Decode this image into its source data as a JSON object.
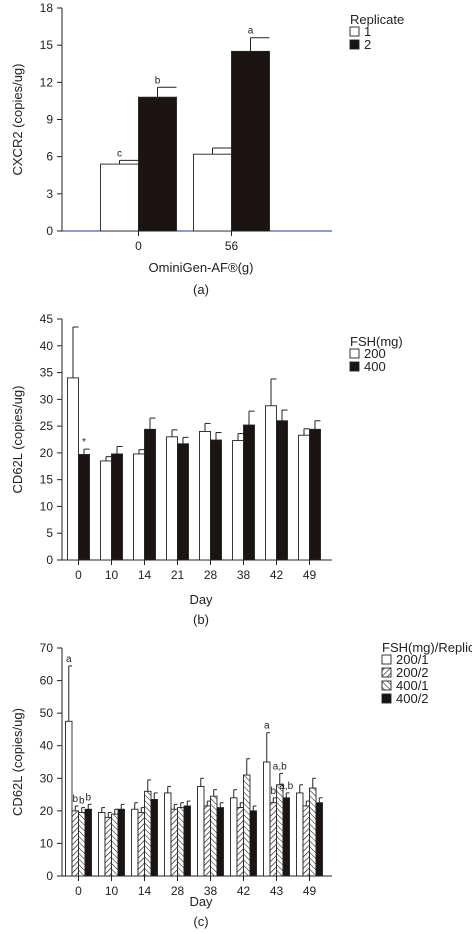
{
  "chart_data": [
    {
      "type": "bar",
      "panel_label": "(a)",
      "xlabel": "OminiGen-AF®(g)",
      "ylabel": "CXCR2 (copies/ug)",
      "ylim": [
        0,
        18
      ],
      "yticks": [
        0,
        3,
        6,
        9,
        12,
        15,
        18
      ],
      "categories": [
        "0",
        "56"
      ],
      "legend_title": "Replicate",
      "legend_position": "top-right",
      "series": [
        {
          "name": "1",
          "fill": "#ffffff",
          "pattern": "none",
          "values": [
            5.4,
            6.2
          ],
          "errors": [
            0.3,
            0.5
          ],
          "annotations": [
            "c",
            ""
          ]
        },
        {
          "name": "2",
          "fill": "#1a1412",
          "pattern": "none",
          "values": [
            10.8,
            14.5
          ],
          "errors": [
            0.8,
            1.1
          ],
          "annotations": [
            "b",
            "a"
          ]
        }
      ]
    },
    {
      "type": "bar",
      "panel_label": "(b)",
      "xlabel": "Day",
      "ylabel": "CD62L (copies/ug)",
      "ylim": [
        0,
        45
      ],
      "yticks": [
        0,
        5,
        10,
        15,
        20,
        25,
        30,
        35,
        40,
        45
      ],
      "categories": [
        "0",
        "10",
        "14",
        "21",
        "28",
        "38",
        "42",
        "49"
      ],
      "legend_title": "FSH(mg)",
      "legend_position": "top-right",
      "series": [
        {
          "name": "200",
          "fill": "#ffffff",
          "pattern": "none",
          "values": [
            34,
            18.5,
            19.8,
            23,
            24,
            22.3,
            28.8,
            23.3
          ],
          "errors": [
            9.5,
            0.8,
            0.8,
            1.3,
            1.5,
            1.3,
            5,
            1.2
          ],
          "annotations": [
            "",
            "",
            "",
            "",
            "",
            "",
            "",
            ""
          ]
        },
        {
          "name": "400",
          "fill": "#1a1412",
          "pattern": "none",
          "values": [
            19.7,
            19.8,
            24.4,
            21.7,
            22.4,
            25.2,
            26,
            24.4
          ],
          "errors": [
            1,
            1.4,
            2.1,
            1.2,
            1.4,
            2.6,
            2,
            1.6
          ],
          "annotations": [
            "*",
            "",
            "",
            "",
            "",
            "",
            "",
            ""
          ]
        }
      ]
    },
    {
      "type": "bar",
      "panel_label": "(c)",
      "xlabel": "Day",
      "ylabel": "CD62L (copies/ug)",
      "ylim": [
        0,
        70
      ],
      "yticks": [
        0,
        10,
        20,
        30,
        40,
        50,
        60,
        70
      ],
      "categories": [
        "0",
        "10",
        "14",
        "28",
        "38",
        "42",
        "43",
        "49"
      ],
      "legend_title": "FSH(mg)/Replicate",
      "legend_position": "top-right",
      "series": [
        {
          "name": "200/1",
          "fill": "#ffffff",
          "pattern": "none",
          "values": [
            47.5,
            19.5,
            20.5,
            25.5,
            27.5,
            24,
            35,
            25.5
          ],
          "errors": [
            17,
            1.5,
            2,
            2,
            2.5,
            2.5,
            9,
            2.5
          ],
          "annotations": [
            "a",
            "",
            "",
            "",
            "",
            "",
            "a",
            ""
          ]
        },
        {
          "name": "200/2",
          "fill": "#ffffff",
          "pattern": "diag",
          "values": [
            20,
            18,
            19.5,
            20.5,
            21.5,
            21,
            22.5,
            21.5
          ],
          "errors": [
            1.5,
            1.5,
            1.5,
            1.5,
            1.5,
            1.5,
            1.5,
            1.5
          ],
          "annotations": [
            "b",
            "",
            "",
            "",
            "",
            "",
            "b",
            ""
          ]
        },
        {
          "name": "400/1",
          "fill": "#ffffff",
          "pattern": "cross",
          "values": [
            19.5,
            19,
            26,
            21,
            24.5,
            31,
            28,
            27
          ],
          "errors": [
            1.5,
            1.5,
            3.5,
            1.5,
            2,
            5,
            3.5,
            3
          ],
          "annotations": [
            "b",
            "",
            "",
            "",
            "",
            "",
            "a,b",
            ""
          ]
        },
        {
          "name": "400/2",
          "fill": "#1a1412",
          "pattern": "none",
          "values": [
            20.5,
            20.5,
            23.5,
            21.5,
            21,
            20,
            24,
            22.5
          ],
          "errors": [
            1.5,
            1.5,
            2,
            1.5,
            1.5,
            1.5,
            1.5,
            1.5
          ],
          "annotations": [
            "b",
            "",
            "",
            "",
            "",
            "",
            "a,b",
            ""
          ]
        }
      ]
    }
  ]
}
